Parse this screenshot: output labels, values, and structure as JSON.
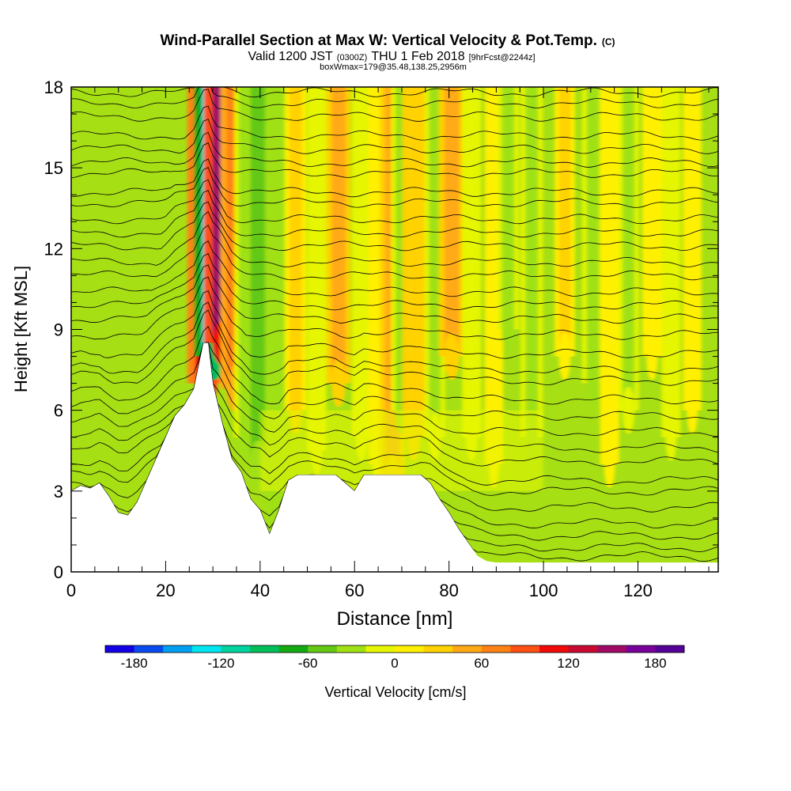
{
  "title": {
    "main": "Wind-Parallel Section at Max W: Vertical Velocity & Pot.Temp.",
    "main_unit": "(C)",
    "valid_a": "Valid 1200 JST",
    "valid_b": "(0300Z)",
    "valid_c": "THU 1 Feb 2018",
    "valid_d": "[9hrFcst@2244z]",
    "box": "boxWmax=179@35.48,138.25,2956m"
  },
  "chart_data": {
    "type": "heatmap",
    "xlabel": "Distance [nm]",
    "ylabel": "Height [Kft MSL]",
    "xlim": [
      0,
      137
    ],
    "ylim": [
      0,
      18
    ],
    "x_ticks": [
      0,
      20,
      40,
      60,
      80,
      100,
      120
    ],
    "y_ticks": [
      0,
      3,
      6,
      9,
      12,
      15,
      18
    ],
    "colorbar": {
      "label": "Vertical Velocity [cm/s]",
      "min": -200,
      "max": 200,
      "tick_values": [
        -180,
        -120,
        -60,
        0,
        60,
        120,
        180
      ],
      "colors": [
        "#1400e6",
        "#0a4bf0",
        "#009ff0",
        "#00e6f0",
        "#00d2a0",
        "#00be5a",
        "#14aa14",
        "#64c814",
        "#a0e114",
        "#e6f500",
        "#fff000",
        "#ffd200",
        "#ffaa14",
        "#ff8214",
        "#ff5014",
        "#f00a0a",
        "#c80a32",
        "#a00a64",
        "#78009b",
        "#550096"
      ]
    },
    "terrain_profile": {
      "x": [
        0,
        2,
        4,
        6,
        8,
        10,
        12,
        14,
        16,
        18,
        20,
        22,
        24,
        26,
        28,
        29,
        30,
        32,
        34,
        36,
        38,
        40,
        42,
        44,
        46,
        48,
        50,
        52,
        54,
        56,
        58,
        60,
        62,
        64,
        66,
        68,
        70,
        72,
        74,
        76,
        78,
        80,
        82,
        84,
        86,
        88,
        90,
        137
      ],
      "y": [
        3,
        3.2,
        3.1,
        3.3,
        2.8,
        2.2,
        2.1,
        2.6,
        3.4,
        4.2,
        5.0,
        5.8,
        6.2,
        6.8,
        8.5,
        8.5,
        7.0,
        5.5,
        4.2,
        3.7,
        2.7,
        2.3,
        1.4,
        2.3,
        3.4,
        3.6,
        3.6,
        3.6,
        3.6,
        3.6,
        3.3,
        3.0,
        3.6,
        3.6,
        3.6,
        3.6,
        3.6,
        3.6,
        3.6,
        3.3,
        2.7,
        2.2,
        1.6,
        1.1,
        0.6,
        0.4,
        0.35,
        0.35
      ]
    },
    "velocity_bands": [
      {
        "x": 28.6,
        "w": 144,
        "hmin": 7.0
      },
      {
        "x": 30.2,
        "w": -158,
        "hmin": 8.0
      },
      {
        "x": 32.6,
        "w": 179,
        "hmin": 8.5
      },
      {
        "x": 34.8,
        "w": 95,
        "hmin": 6.8
      },
      {
        "x": 36.8,
        "w": -36,
        "hmin": 5.0
      },
      {
        "x": 39.5,
        "w": -56,
        "hmin": 4.0
      },
      {
        "x": 43.6,
        "w": -47,
        "hmin": 1.4
      },
      {
        "x": 47.5,
        "w": 36,
        "hmin": 6.0
      },
      {
        "x": 52.0,
        "w": -20,
        "hmin": 4.5
      },
      {
        "x": 56.6,
        "w": 52,
        "hmin": 7.0
      },
      {
        "x": 61.5,
        "w": -24,
        "hmin": 5.0
      },
      {
        "x": 65.0,
        "w": 24,
        "hmin": 4.0
      },
      {
        "x": 68.0,
        "w": 60,
        "hmin": 3.5
      },
      {
        "x": 70.0,
        "w": -36,
        "hmin": 6.0
      },
      {
        "x": 72.5,
        "w": 40,
        "hmin": 5.0
      },
      {
        "x": 77.0,
        "w": -28,
        "hmin": 5.0
      },
      {
        "x": 80.6,
        "w": 64,
        "hmin": 8.0
      },
      {
        "x": 84.8,
        "w": -20,
        "hmin": 5.0
      },
      {
        "x": 89.5,
        "w": 16,
        "hmin": 4.0
      },
      {
        "x": 92.5,
        "w": -36,
        "hmin": 9.0
      },
      {
        "x": 97.5,
        "w": -40,
        "hmin": 5.0
      },
      {
        "x": 104.5,
        "w": 28,
        "hmin": 8.0
      },
      {
        "x": 110.5,
        "w": -40,
        "hmin": 7.0
      },
      {
        "x": 114.0,
        "w": 20,
        "hmin": 4.0
      },
      {
        "x": 118.0,
        "w": -30,
        "hmin": 6.0
      },
      {
        "x": 123.0,
        "w": 24,
        "hmin": 8.0
      },
      {
        "x": 127.0,
        "w": -20,
        "hmin": 5.0
      },
      {
        "x": 131.5,
        "w": 16,
        "hmin": 6.0
      }
    ],
    "series": [
      {
        "type": "isentropes",
        "base_heights": [
          0.4,
          0.8,
          1.3,
          1.8,
          2.4,
          3.0,
          3.4,
          4.1,
          4.6,
          5.2,
          5.8,
          6.4,
          7.1,
          7.5,
          8.1,
          8.8,
          9.4,
          9.9,
          10.4,
          11.0,
          11.5,
          12.1,
          12.6,
          13.1,
          13.7,
          14.1,
          14.8,
          15.2,
          15.7,
          16.2,
          16.9,
          17.4,
          17.8
        ]
      }
    ]
  }
}
